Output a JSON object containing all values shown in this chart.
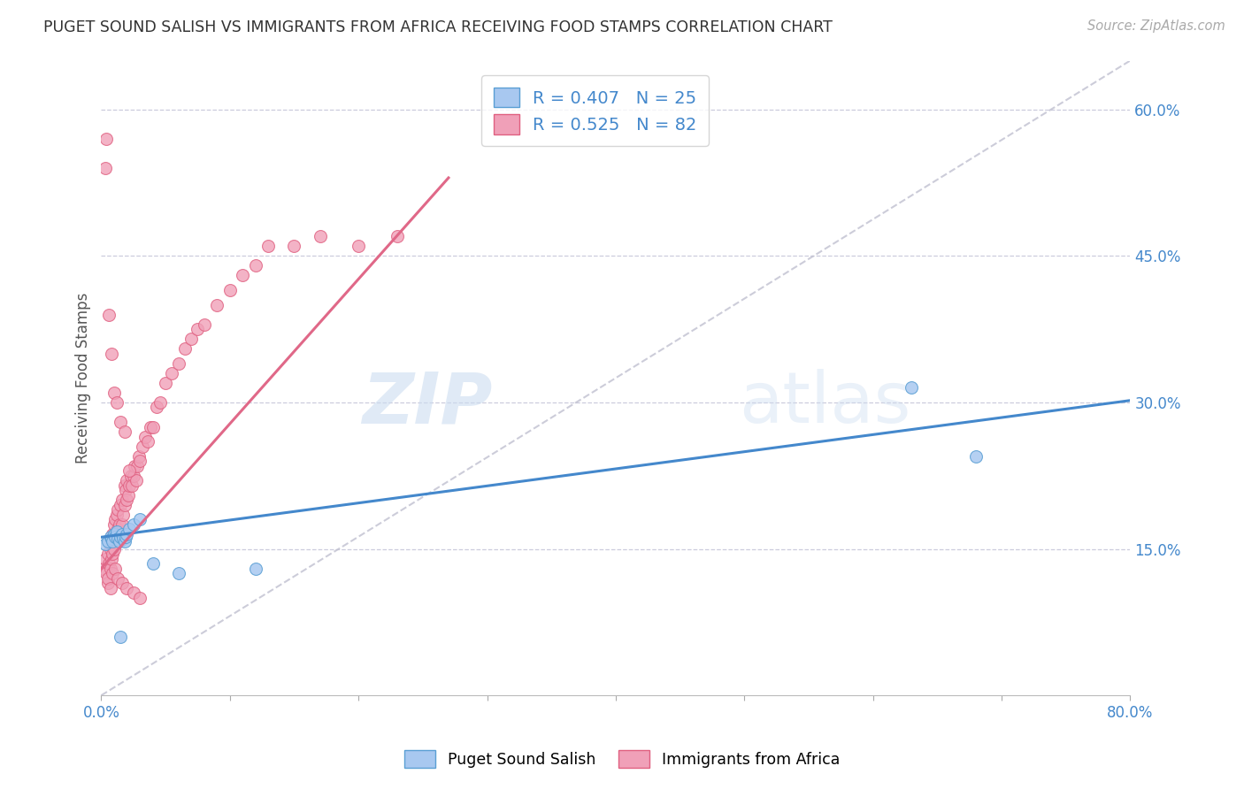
{
  "title": "PUGET SOUND SALISH VS IMMIGRANTS FROM AFRICA RECEIVING FOOD STAMPS CORRELATION CHART",
  "source": "Source: ZipAtlas.com",
  "ylabel": "Receiving Food Stamps",
  "xlim": [
    0.0,
    0.8
  ],
  "ylim": [
    0.0,
    0.65
  ],
  "ytick_positions": [
    0.15,
    0.3,
    0.45,
    0.6
  ],
  "ytick_labels": [
    "15.0%",
    "30.0%",
    "45.0%",
    "60.0%"
  ],
  "blue_fill": "#a8c8f0",
  "blue_edge": "#5a9fd4",
  "pink_fill": "#f0a0b8",
  "pink_edge": "#e06080",
  "blue_line_color": "#4488cc",
  "pink_line_color": "#e06888",
  "dashed_line_color": "#c0c0d0",
  "legend_R1": "R = 0.407",
  "legend_N1": "N = 25",
  "legend_R2": "R = 0.525",
  "legend_N2": "N = 82",
  "legend1_label": "Puget Sound Salish",
  "legend2_label": "Immigrants from Africa",
  "watermark1": "ZIP",
  "watermark2": "atlas",
  "blue_scatter_x": [
    0.003,
    0.005,
    0.007,
    0.008,
    0.009,
    0.01,
    0.011,
    0.012,
    0.013,
    0.014,
    0.015,
    0.016,
    0.017,
    0.018,
    0.019,
    0.02,
    0.022,
    0.025,
    0.03,
    0.04,
    0.06,
    0.12,
    0.63,
    0.68,
    0.015
  ],
  "blue_scatter_y": [
    0.155,
    0.158,
    0.162,
    0.16,
    0.158,
    0.165,
    0.162,
    0.168,
    0.16,
    0.158,
    0.162,
    0.165,
    0.16,
    0.158,
    0.162,
    0.165,
    0.17,
    0.175,
    0.18,
    0.135,
    0.125,
    0.13,
    0.315,
    0.245,
    0.06
  ],
  "pink_scatter_x": [
    0.002,
    0.003,
    0.004,
    0.005,
    0.005,
    0.006,
    0.007,
    0.007,
    0.008,
    0.008,
    0.009,
    0.009,
    0.01,
    0.01,
    0.011,
    0.011,
    0.012,
    0.012,
    0.013,
    0.013,
    0.014,
    0.015,
    0.015,
    0.016,
    0.016,
    0.017,
    0.018,
    0.018,
    0.019,
    0.02,
    0.02,
    0.021,
    0.022,
    0.023,
    0.024,
    0.025,
    0.026,
    0.027,
    0.028,
    0.029,
    0.03,
    0.032,
    0.034,
    0.036,
    0.038,
    0.04,
    0.043,
    0.046,
    0.05,
    0.055,
    0.06,
    0.065,
    0.07,
    0.075,
    0.08,
    0.09,
    0.1,
    0.11,
    0.12,
    0.13,
    0.15,
    0.17,
    0.2,
    0.23,
    0.003,
    0.004,
    0.006,
    0.008,
    0.01,
    0.012,
    0.015,
    0.018,
    0.022,
    0.005,
    0.007,
    0.009,
    0.011,
    0.013,
    0.016,
    0.02,
    0.025,
    0.03
  ],
  "pink_scatter_y": [
    0.13,
    0.14,
    0.125,
    0.115,
    0.145,
    0.135,
    0.15,
    0.13,
    0.14,
    0.16,
    0.145,
    0.165,
    0.15,
    0.175,
    0.16,
    0.18,
    0.165,
    0.185,
    0.17,
    0.19,
    0.175,
    0.165,
    0.195,
    0.175,
    0.2,
    0.185,
    0.195,
    0.215,
    0.21,
    0.2,
    0.22,
    0.205,
    0.215,
    0.225,
    0.215,
    0.225,
    0.235,
    0.22,
    0.235,
    0.245,
    0.24,
    0.255,
    0.265,
    0.26,
    0.275,
    0.275,
    0.295,
    0.3,
    0.32,
    0.33,
    0.34,
    0.355,
    0.365,
    0.375,
    0.38,
    0.4,
    0.415,
    0.43,
    0.44,
    0.46,
    0.46,
    0.47,
    0.46,
    0.47,
    0.54,
    0.57,
    0.39,
    0.35,
    0.31,
    0.3,
    0.28,
    0.27,
    0.23,
    0.12,
    0.11,
    0.125,
    0.13,
    0.12,
    0.115,
    0.11,
    0.105,
    0.1
  ],
  "blue_line_x": [
    0.0,
    0.8
  ],
  "blue_line_y": [
    0.162,
    0.302
  ],
  "pink_line_x": [
    0.0,
    0.27
  ],
  "pink_line_y": [
    0.13,
    0.53
  ],
  "dashed_line_x": [
    0.0,
    0.8
  ],
  "dashed_line_y": [
    0.0,
    0.65
  ]
}
